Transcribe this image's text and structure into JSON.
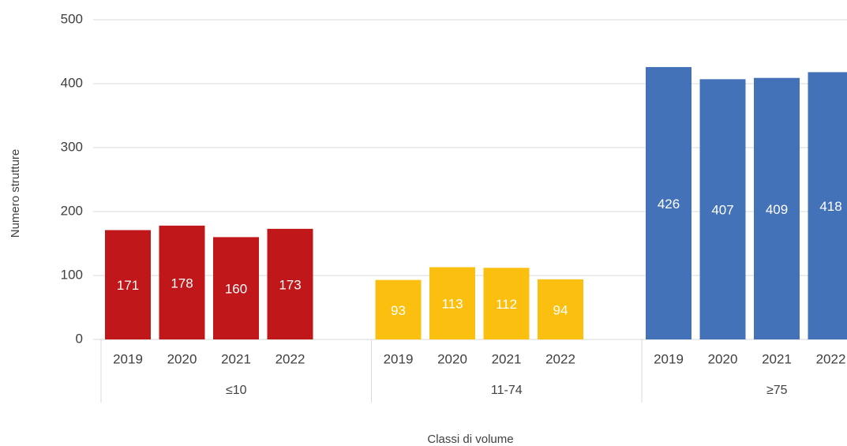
{
  "chart_data": {
    "type": "bar",
    "y_label": "Numero strutture",
    "x_label": "Classi di volume",
    "series": [
      {
        "name": "≤10",
        "color": "#c0171b",
        "categories": [
          "2019",
          "2020",
          "2021",
          "2022"
        ],
        "values": [
          171,
          178,
          160,
          173
        ]
      },
      {
        "name": "11-74",
        "color": "#fbbf0f",
        "categories": [
          "2019",
          "2020",
          "2021",
          "2022"
        ],
        "values": [
          93,
          113,
          112,
          94
        ]
      },
      {
        "name": "≥75",
        "color": "#4472b8",
        "categories": [
          "2019",
          "2020",
          "2021",
          "2022"
        ],
        "values": [
          426,
          407,
          409,
          418
        ]
      }
    ],
    "ylim": [
      0,
      500
    ],
    "yticks": [
      0,
      100,
      200,
      300,
      400,
      500
    ],
    "grid": true
  }
}
